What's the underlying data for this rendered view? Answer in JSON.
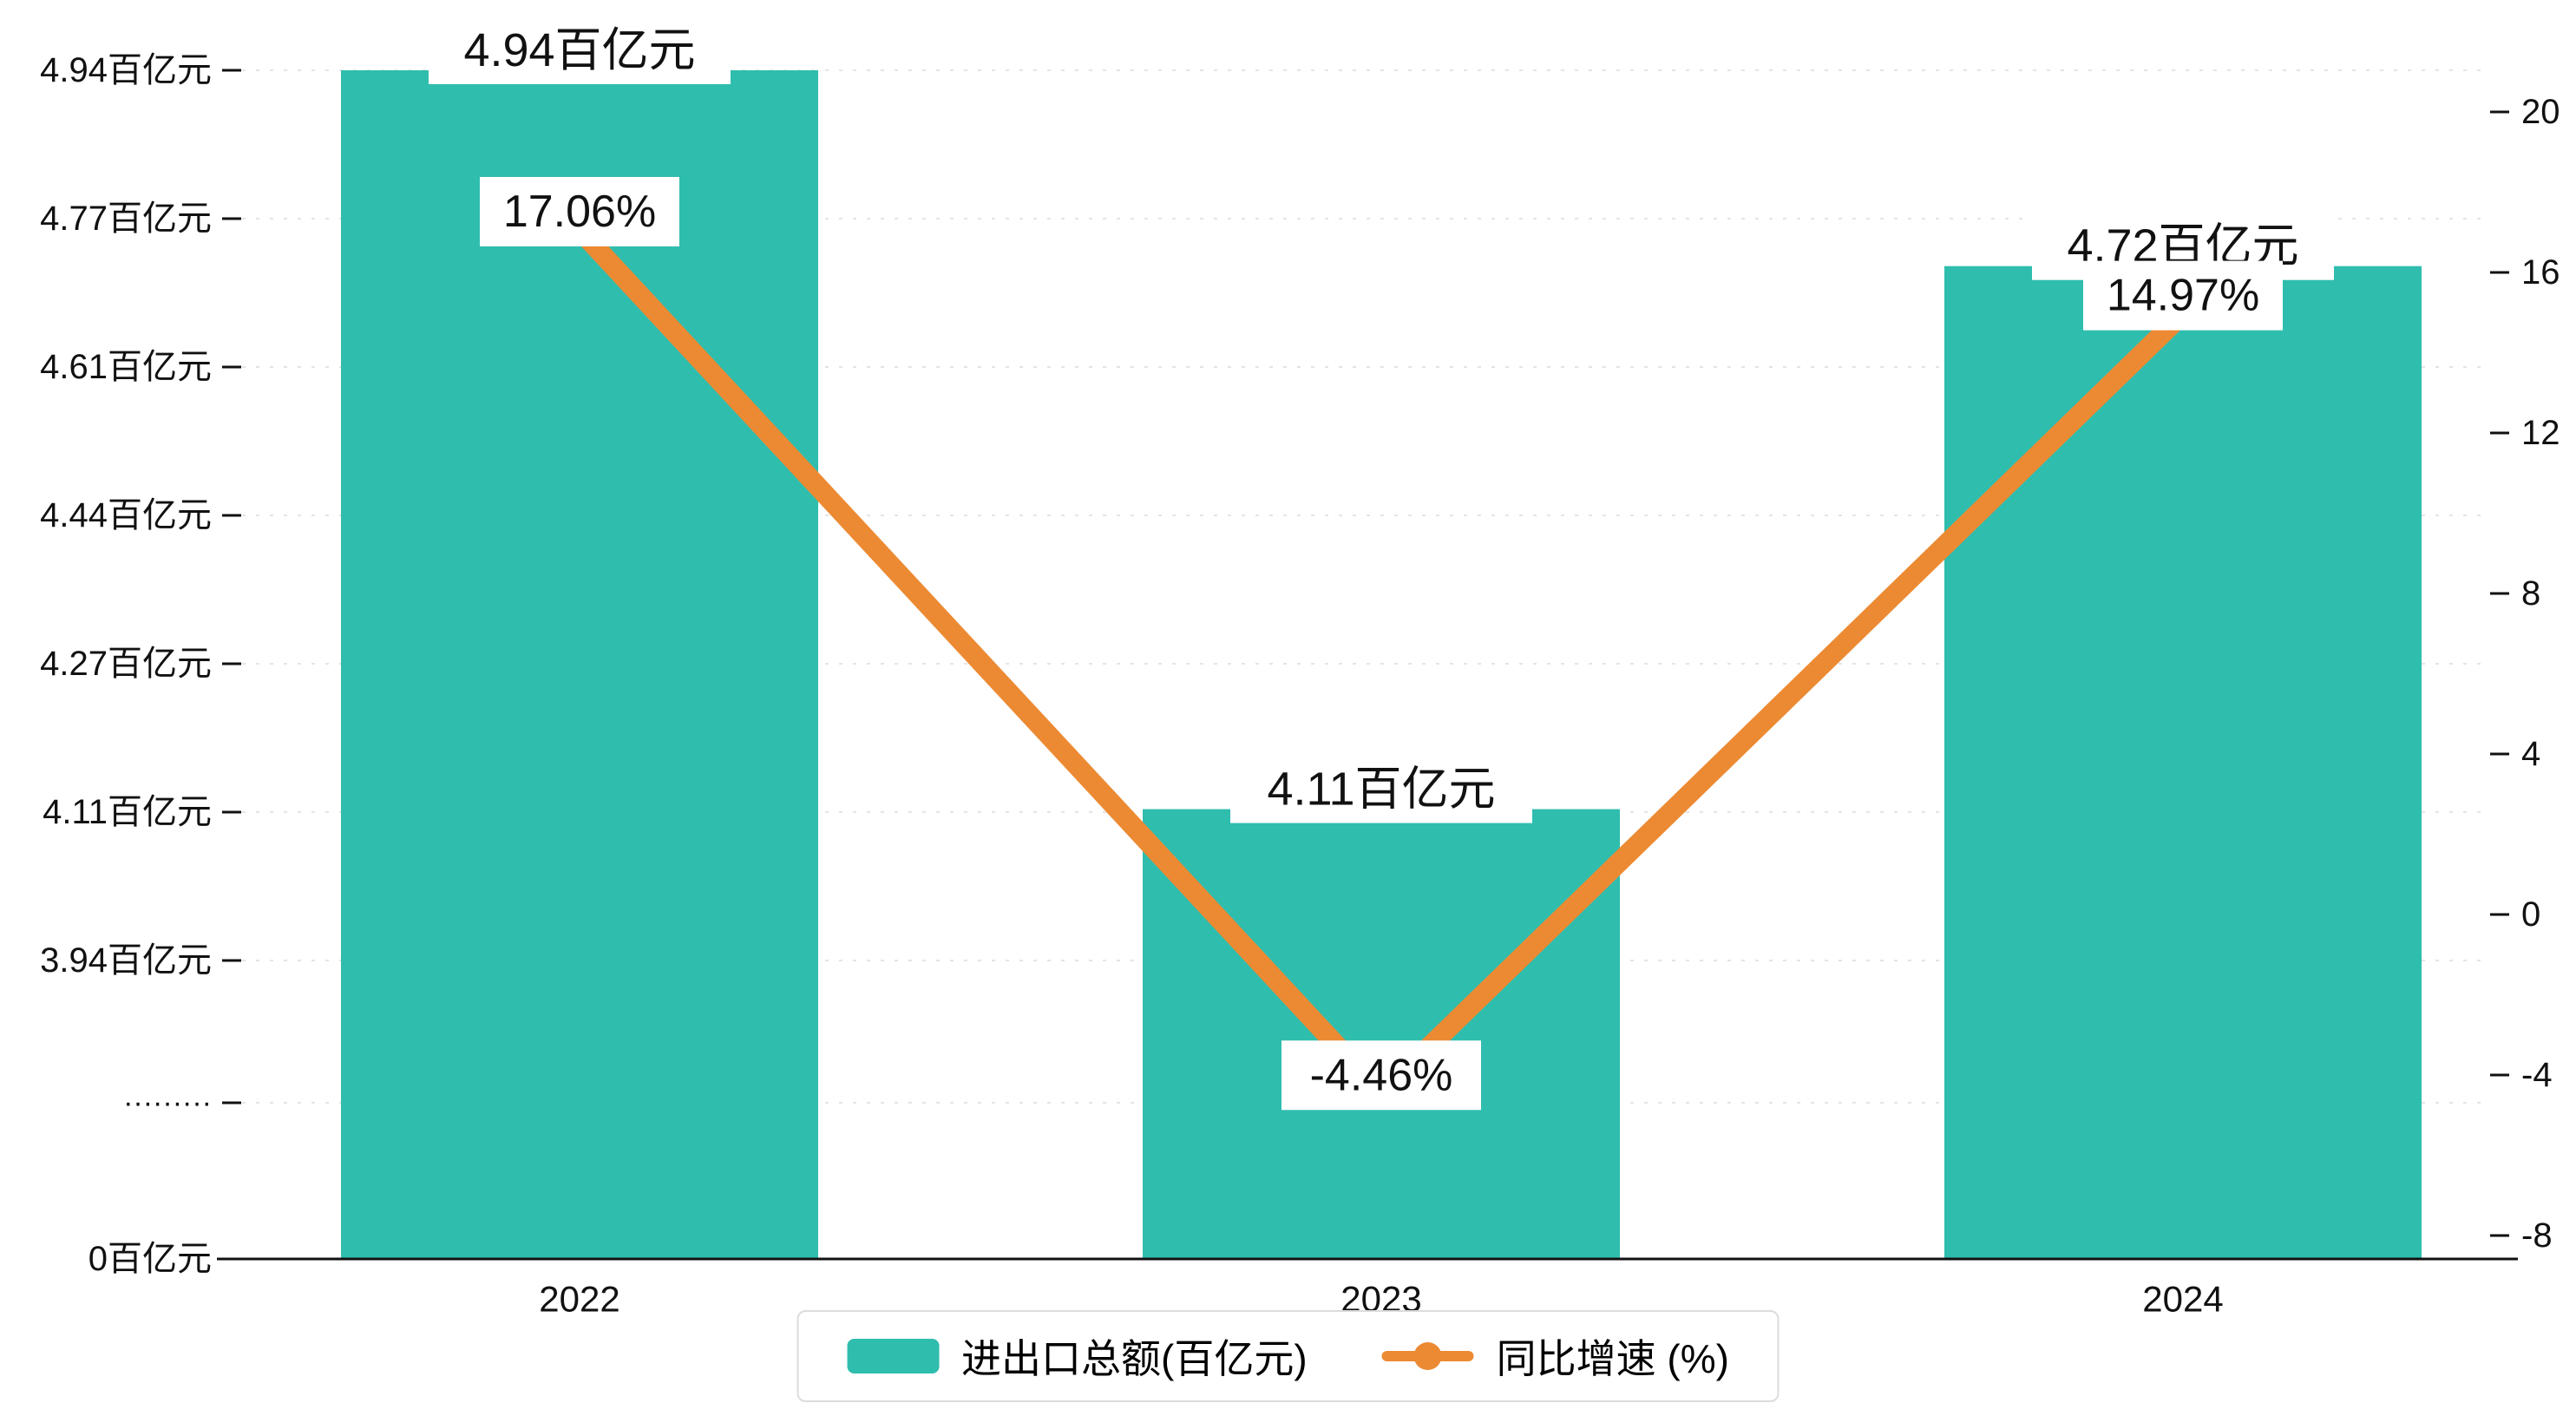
{
  "chart_data": {
    "type": "combo",
    "title": "",
    "background": "#ffffff",
    "grid": "dashed-horizontal",
    "categories": [
      "2022",
      "2023",
      "2024"
    ],
    "series": [
      {
        "name": "进出口总额(百亿元)",
        "type": "bar",
        "color": "#2fbdae",
        "values": [
          4.94,
          4.11,
          4.72
        ],
        "labels": [
          "4.94百亿元",
          "4.11百亿元",
          "4.72百亿元"
        ]
      },
      {
        "name": "同比增速 (%)",
        "type": "line",
        "color": "#ec8a33",
        "values": [
          17.06,
          -4.46,
          14.97
        ],
        "labels": [
          "17.06%",
          "-4.46%",
          "14.97%"
        ]
      }
    ],
    "left_axis": {
      "tick_labels": [
        "4.94百亿元",
        "4.77百亿元",
        "4.61百亿元",
        "4.44百亿元",
        "4.27百亿元",
        "4.11百亿元",
        "3.94百亿元",
        "·········",
        "0百亿元"
      ],
      "tick_values": [
        4.94,
        4.77,
        4.61,
        4.44,
        4.27,
        4.11,
        3.94,
        null,
        0
      ],
      "has_break": true,
      "vmax": 4.94,
      "vmin_visible": 3.94
    },
    "right_axis": {
      "tick_labels": [
        "20",
        "16",
        "12",
        "8",
        "4",
        "0",
        "-4",
        "-8"
      ],
      "tick_values": [
        20,
        16,
        12,
        8,
        4,
        0,
        -4,
        -8
      ],
      "max": 20,
      "min": -8
    },
    "x_axis": {
      "tick_labels": [
        "2022",
        "2023",
        "2024"
      ]
    },
    "legend": [
      {
        "label": "进出口总额(百亿元)",
        "marker": "bar",
        "color": "#2fbdae"
      },
      {
        "label": "同比增速 (%)",
        "marker": "line-dot",
        "color": "#ec8a33"
      }
    ]
  }
}
